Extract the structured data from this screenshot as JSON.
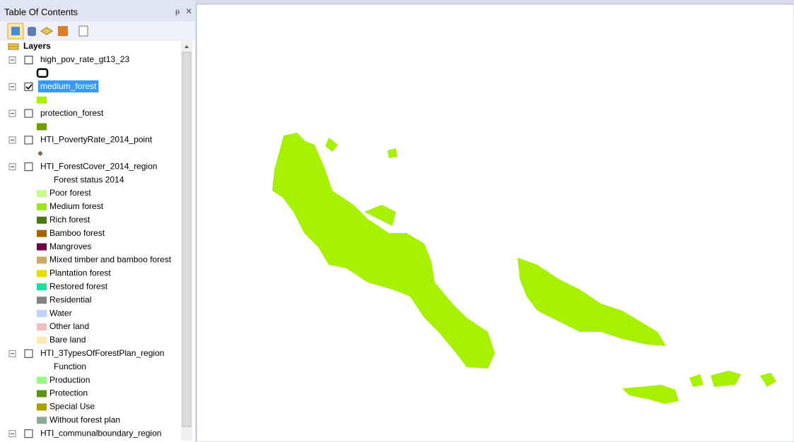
{
  "panel": {
    "title": "Table Of Contents",
    "root": "Layers"
  },
  "layers": [
    {
      "name": "high_pov_rate_gt13_23",
      "checked": false,
      "legend": [
        {
          "color": "#000000",
          "outline": true
        }
      ]
    },
    {
      "name": "medium_forest",
      "checked": true,
      "selected": true,
      "legend": [
        {
          "color": "#a6f000"
        }
      ]
    },
    {
      "name": "protection_forest",
      "checked": false,
      "legend": [
        {
          "color": "#6e9e00"
        }
      ]
    },
    {
      "name": "HTI_PovertyRate_2014_point",
      "checked": false,
      "legend": [
        {
          "color": "#8c6e28",
          "point": true
        }
      ]
    },
    {
      "name": "HTI_ForestCover_2014_region",
      "checked": false,
      "heading": "Forest status 2014",
      "legend": [
        {
          "label": "Poor forest",
          "color": "#cdfa8c"
        },
        {
          "label": "Medium forest",
          "color": "#9be61e"
        },
        {
          "label": "Rich forest",
          "color": "#4b7814"
        },
        {
          "label": "Bamboo forest",
          "color": "#a5640a"
        },
        {
          "label": "Mangroves",
          "color": "#730046"
        },
        {
          "label": "Mixed timber and bamboo forest",
          "color": "#cdaa64"
        },
        {
          "label": "Plantation forest",
          "color": "#e6dc00"
        },
        {
          "label": "Restored forest",
          "color": "#1edc9b"
        },
        {
          "label": "Residential",
          "color": "#828282"
        },
        {
          "label": "Water",
          "color": "#bed2ff"
        },
        {
          "label": "Other land",
          "color": "#f5bebe"
        },
        {
          "label": "Bare land",
          "color": "#ffebaf"
        }
      ]
    },
    {
      "name": "HTI_3TypesOfForestPlan_region",
      "checked": false,
      "heading": "Function",
      "legend": [
        {
          "label": "Production",
          "color": "#96fa82"
        },
        {
          "label": "Protection",
          "color": "#5a9614"
        },
        {
          "label": "Special Use",
          "color": "#aaa000"
        },
        {
          "label": "Without forest plan",
          "color": "#8caa96"
        }
      ]
    },
    {
      "name": "HTI_communalboundary_region",
      "checked": false,
      "legend": []
    }
  ]
}
